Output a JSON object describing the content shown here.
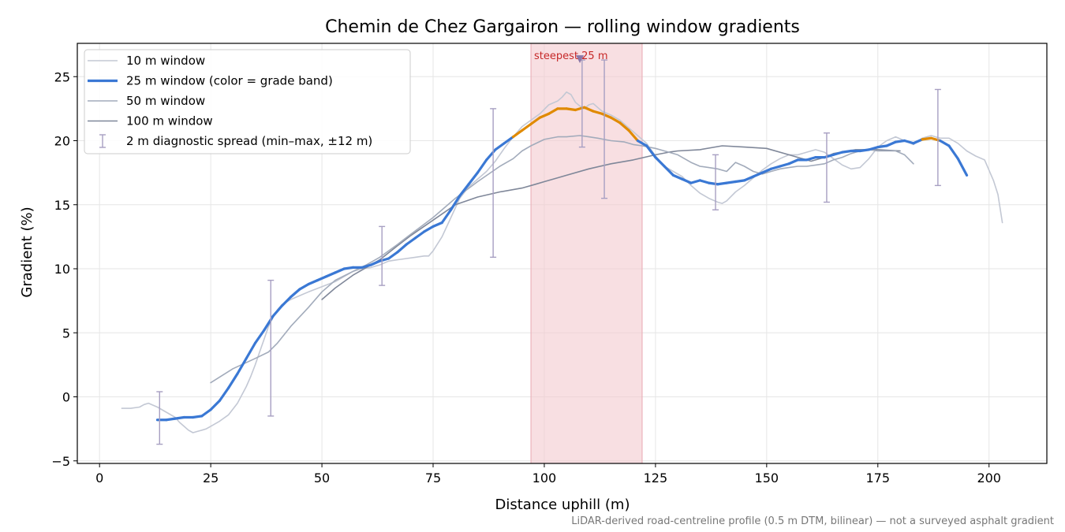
{
  "chart_data": {
    "type": "line",
    "title": "Chemin de Chez Gargairon — rolling window gradients",
    "xlabel": "Distance uphill (m)",
    "ylabel": "Gradient (%)",
    "xlim": [
      -5,
      213
    ],
    "ylim": [
      -5.2,
      27.6
    ],
    "xticks": [
      0,
      25,
      50,
      75,
      100,
      125,
      150,
      175,
      200
    ],
    "yticks": [
      -5,
      0,
      5,
      10,
      15,
      20,
      25
    ],
    "grid": true,
    "legend_placement": "top-left",
    "footnote": "LiDAR-derived road-centreline profile (0.5 m DTM, bilinear) — not a surveyed asphalt gradient",
    "highlight": {
      "x_range": [
        97,
        122
      ],
      "label": "steepest 25 m",
      "marker_x": 108,
      "marker_y": 26.3,
      "color": "#f3c9cf"
    },
    "colors": {
      "w10": "#c3c8d4",
      "w25": "#3a78d4",
      "w25_steep": "#e08a00",
      "w50": "#a2abbb",
      "w100": "#7f8799",
      "errorbar": "#a79fc2"
    },
    "legend": [
      {
        "key": "w10",
        "label": "10 m window"
      },
      {
        "key": "w25",
        "label": "25 m window (color = grade band)"
      },
      {
        "key": "w50",
        "label": "50 m window"
      },
      {
        "key": "w100",
        "label": "100 m window"
      },
      {
        "key": "errorbar",
        "label": "2 m diagnostic spread (min–max, ±12 m)"
      }
    ],
    "grade_bands": [
      {
        "min": 20,
        "color": "#e08a00"
      }
    ],
    "series": [
      {
        "key": "w10",
        "name": "10 m window",
        "x": [
          5,
          7,
          9,
          10,
          11,
          13,
          15,
          17,
          18,
          19,
          20,
          21,
          22,
          23,
          24,
          25,
          27,
          29,
          31,
          33,
          34,
          35,
          36,
          37,
          38,
          39,
          40,
          41,
          43,
          45,
          47,
          50,
          53,
          55,
          57,
          59,
          61,
          63,
          65,
          67,
          69,
          71,
          73,
          74,
          75,
          77,
          79,
          81,
          83,
          85,
          87,
          89,
          91,
          93,
          95,
          97,
          99,
          101,
          103,
          104,
          105,
          106,
          107,
          108,
          109,
          110,
          111,
          112,
          113,
          115,
          117,
          119,
          121,
          123,
          125,
          127,
          129,
          131,
          133,
          135,
          137,
          139,
          140,
          141,
          143,
          145,
          147,
          149,
          151,
          153,
          155,
          157,
          159,
          161,
          163,
          165,
          167,
          169,
          171,
          173,
          175,
          177,
          179,
          181,
          183,
          185,
          187,
          189,
          191,
          193,
          195,
          197,
          199,
          201,
          202,
          203
        ],
        "y": [
          -0.9,
          -0.9,
          -0.8,
          -0.6,
          -0.5,
          -0.8,
          -1.2,
          -1.6,
          -2.0,
          -2.3,
          -2.6,
          -2.8,
          -2.7,
          -2.6,
          -2.5,
          -2.3,
          -1.9,
          -1.4,
          -0.5,
          0.8,
          1.6,
          2.5,
          3.5,
          4.5,
          5.5,
          6.2,
          6.8,
          7.2,
          7.6,
          7.9,
          8.2,
          8.6,
          9.0,
          9.4,
          9.8,
          10.0,
          10.1,
          10.3,
          10.6,
          10.7,
          10.8,
          10.9,
          11.0,
          11.0,
          11.4,
          12.5,
          14.0,
          15.5,
          16.4,
          17.0,
          17.6,
          18.4,
          19.4,
          20.3,
          21.1,
          21.6,
          22.1,
          22.8,
          23.1,
          23.4,
          23.8,
          23.6,
          23.0,
          22.7,
          22.5,
          22.8,
          22.9,
          22.6,
          22.3,
          22.0,
          21.6,
          21.0,
          20.4,
          19.8,
          18.8,
          18.0,
          17.6,
          17.2,
          16.5,
          15.9,
          15.5,
          15.2,
          15.1,
          15.3,
          16.0,
          16.5,
          17.1,
          17.7,
          18.2,
          18.6,
          18.9,
          18.9,
          19.1,
          19.3,
          19.1,
          18.6,
          18.1,
          17.8,
          17.9,
          18.6,
          19.5,
          20.0,
          20.3,
          20.0,
          19.7,
          20.2,
          20.4,
          20.2,
          20.2,
          19.8,
          19.2,
          18.8,
          18.5,
          16.9,
          15.8,
          13.6
        ]
      },
      {
        "key": "w25",
        "name": "25 m window (color = grade band)",
        "x": [
          13,
          15,
          17,
          19,
          21,
          23,
          25,
          27,
          29,
          31,
          33,
          35,
          37,
          39,
          41,
          43,
          45,
          47,
          49,
          51,
          53,
          55,
          57,
          59,
          61,
          63,
          65,
          67,
          69,
          71,
          73,
          75,
          77,
          79,
          81,
          83,
          85,
          87,
          89,
          91,
          93,
          95,
          97,
          99,
          101,
          103,
          105,
          107,
          109,
          111,
          113,
          115,
          117,
          119,
          121,
          123,
          125,
          127,
          129,
          131,
          133,
          135,
          137,
          139,
          141,
          143,
          145,
          147,
          149,
          151,
          153,
          155,
          157,
          159,
          161,
          163,
          165,
          167,
          169,
          171,
          173,
          175,
          177,
          179,
          181,
          183,
          185,
          187,
          189,
          191,
          193,
          195
        ],
        "y": [
          -1.8,
          -1.8,
          -1.7,
          -1.6,
          -1.6,
          -1.5,
          -1.0,
          -0.3,
          0.7,
          1.8,
          3.0,
          4.2,
          5.2,
          6.3,
          7.1,
          7.8,
          8.4,
          8.8,
          9.1,
          9.4,
          9.7,
          10.0,
          10.1,
          10.1,
          10.3,
          10.6,
          10.8,
          11.3,
          11.9,
          12.4,
          12.9,
          13.3,
          13.6,
          14.6,
          15.7,
          16.6,
          17.5,
          18.5,
          19.3,
          19.8,
          20.3,
          20.8,
          21.3,
          21.8,
          22.1,
          22.5,
          22.5,
          22.4,
          22.6,
          22.3,
          22.1,
          21.8,
          21.4,
          20.8,
          20.0,
          19.6,
          18.7,
          18.0,
          17.3,
          17.0,
          16.7,
          16.9,
          16.7,
          16.6,
          16.7,
          16.8,
          16.9,
          17.2,
          17.5,
          17.8,
          18.0,
          18.2,
          18.5,
          18.5,
          18.7,
          18.7,
          18.9,
          19.1,
          19.2,
          19.2,
          19.3,
          19.5,
          19.6,
          19.9,
          20.0,
          19.8,
          20.1,
          20.2,
          20.0,
          19.6,
          18.6,
          17.3
        ]
      },
      {
        "key": "w50",
        "name": "50 m window",
        "x": [
          25,
          30,
          35,
          38,
          40,
          43,
          47,
          50,
          53,
          57,
          60,
          63,
          67,
          70,
          75,
          80,
          85,
          90,
          93,
          95,
          97,
          100,
          103,
          105,
          108,
          110,
          112,
          115,
          118,
          120,
          122,
          125,
          127,
          130,
          133,
          135,
          137,
          139,
          141,
          143,
          145,
          147,
          149,
          151,
          153,
          155,
          157,
          159,
          161,
          163,
          165,
          167,
          169,
          171,
          173,
          175,
          177,
          179,
          181,
          183
        ],
        "y": [
          1.1,
          2.2,
          3.0,
          3.5,
          4.2,
          5.5,
          7.0,
          8.2,
          9.1,
          9.8,
          10.3,
          10.9,
          11.9,
          12.7,
          14.0,
          15.5,
          16.8,
          18.0,
          18.6,
          19.2,
          19.6,
          20.1,
          20.3,
          20.3,
          20.4,
          20.3,
          20.2,
          20.0,
          19.9,
          19.7,
          19.6,
          19.4,
          19.2,
          18.9,
          18.3,
          18.0,
          17.9,
          17.8,
          17.6,
          18.3,
          18.0,
          17.6,
          17.4,
          17.6,
          17.8,
          17.9,
          18.0,
          18.0,
          18.1,
          18.2,
          18.5,
          18.7,
          19.0,
          19.2,
          19.3,
          19.2,
          19.2,
          19.2,
          18.9,
          18.2
        ]
      },
      {
        "key": "w100",
        "name": "100 m window",
        "x": [
          50,
          53,
          57,
          60,
          63,
          67,
          70,
          75,
          80,
          85,
          90,
          95,
          98,
          100,
          103,
          105,
          110,
          115,
          120,
          125,
          128,
          130,
          135,
          140,
          145,
          150,
          155,
          160,
          163,
          165,
          170,
          175,
          180
        ],
        "y": [
          7.6,
          8.5,
          9.5,
          10.1,
          10.7,
          11.8,
          12.6,
          13.8,
          15.0,
          15.6,
          16.0,
          16.3,
          16.6,
          16.8,
          17.1,
          17.3,
          17.8,
          18.2,
          18.5,
          18.9,
          19.1,
          19.2,
          19.3,
          19.6,
          19.5,
          19.4,
          18.9,
          18.4,
          18.7,
          19.0,
          19.3,
          19.3,
          19.2
        ]
      }
    ],
    "errorbars": [
      {
        "x": 13.5,
        "min": -3.7,
        "max": 0.4
      },
      {
        "x": 38.5,
        "min": -1.5,
        "max": 9.1
      },
      {
        "x": 63.5,
        "min": 8.7,
        "max": 13.3
      },
      {
        "x": 88.5,
        "min": 10.9,
        "max": 22.5
      },
      {
        "x": 108.5,
        "min": 19.5,
        "max": 26.3
      },
      {
        "x": 113.5,
        "min": 15.5,
        "max": 26.3
      },
      {
        "x": 138.5,
        "min": 14.6,
        "max": 18.9
      },
      {
        "x": 163.5,
        "min": 15.2,
        "max": 20.6
      },
      {
        "x": 188.5,
        "min": 16.5,
        "max": 24.0
      }
    ]
  }
}
